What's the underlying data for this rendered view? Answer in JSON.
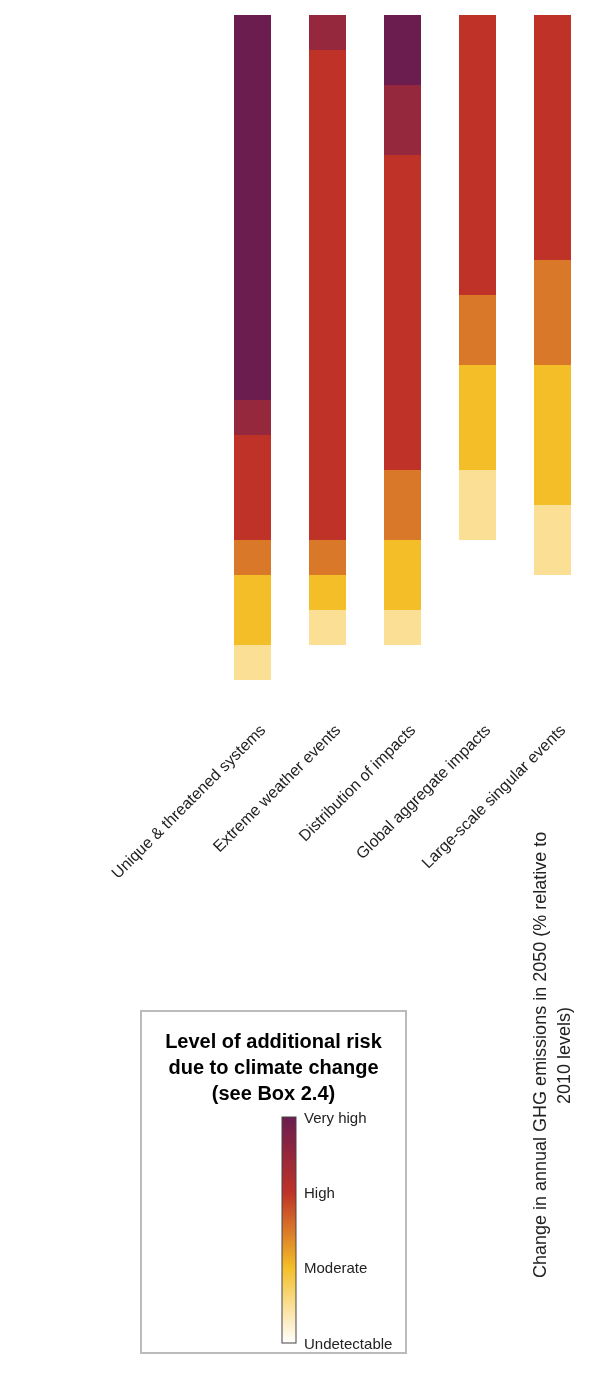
{
  "chart_data": {
    "type": "heatmap",
    "categories": [
      "Unique & threatened systems",
      "Extreme weather events",
      "Distribution of impacts",
      "Global aggregate impacts",
      "Large-scale singular events"
    ],
    "y_categories": [
      null,
      null,
      null,
      null,
      null,
      null,
      null,
      null,
      null,
      null,
      null,
      null,
      null,
      null,
      null,
      null,
      null,
      null,
      null,
      null
    ],
    "cells": [
      [
        3,
        2.5,
        3,
        2,
        2
      ],
      [
        3,
        2,
        3,
        2,
        2
      ],
      [
        3,
        2,
        2.5,
        2,
        2
      ],
      [
        3,
        2,
        2.5,
        2,
        2
      ],
      [
        3,
        2,
        2,
        2,
        2
      ],
      [
        3,
        2,
        2,
        2,
        2
      ],
      [
        3,
        2,
        2,
        2,
        2
      ],
      [
        3,
        2,
        2,
        2,
        1.5
      ],
      [
        3,
        2,
        2,
        1.5,
        1.5
      ],
      [
        3,
        2,
        2,
        1.5,
        1.5
      ],
      [
        3,
        2,
        2,
        1,
        1
      ],
      [
        2.5,
        2,
        2,
        1,
        1
      ],
      [
        2,
        2,
        2,
        1,
        1
      ],
      [
        2,
        2,
        1.5,
        0.5,
        1
      ],
      [
        2,
        2,
        1.5,
        0.5,
        0.5
      ],
      [
        1.5,
        1.5,
        1,
        0,
        0.5
      ],
      [
        1,
        1,
        1,
        0,
        0
      ],
      [
        1,
        0.5,
        0.5,
        0,
        0
      ],
      [
        0.5,
        0,
        0,
        0,
        0
      ],
      [
        0,
        0,
        0,
        0,
        0
      ]
    ],
    "clim": [
      0,
      3
    ],
    "cticks": [
      {
        "value": 3,
        "label": "Very high"
      },
      {
        "value": 2,
        "label": "High"
      },
      {
        "value": 1,
        "label": "Moderate"
      },
      {
        "value": 0,
        "label": "Undetectable"
      }
    ],
    "clabel": "Level of additional risk due to climate change (see Box 2.4)",
    "annotations": [
      "Change in annual GHG emissions in 2050 (% relative to 2010 levels)"
    ]
  }
}
